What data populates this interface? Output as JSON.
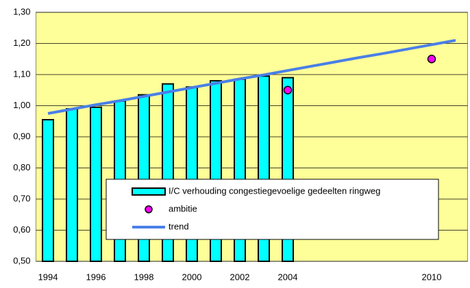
{
  "chart_data": {
    "type": "bar",
    "categories": [
      "1994",
      null,
      "1996",
      null,
      "1998",
      null,
      "2000",
      null,
      "2002",
      null,
      "2004",
      null,
      null,
      null,
      null,
      null,
      "2010",
      null
    ],
    "series": [
      {
        "name": "I/C verhouding congestiegevoelige gedeelten ringweg",
        "type": "bar",
        "color": "#00ffff",
        "values": [
          0.955,
          0.99,
          0.995,
          1.015,
          1.035,
          1.07,
          1.06,
          1.08,
          1.085,
          1.095,
          1.09,
          null,
          null,
          null,
          null,
          null,
          null,
          null
        ]
      },
      {
        "name": "ambitie",
        "type": "scatter",
        "color": "#ff00ff",
        "values": [
          null,
          null,
          null,
          null,
          null,
          null,
          null,
          null,
          null,
          null,
          1.05,
          null,
          null,
          null,
          null,
          null,
          1.15,
          null
        ]
      },
      {
        "name": "trend",
        "type": "line",
        "color": "#4a7fe8",
        "values": [
          0.975,
          0.989,
          1.003,
          1.016,
          1.03,
          1.044,
          1.058,
          1.072,
          1.086,
          1.099,
          1.113,
          1.127,
          1.141,
          1.155,
          1.168,
          1.182,
          1.196,
          1.21
        ]
      }
    ],
    "ylim": [
      0.5,
      1.3
    ],
    "yticks": [
      {
        "value": 0.5,
        "label": "0,50"
      },
      {
        "value": 0.6,
        "label": "0,60"
      },
      {
        "value": 0.7,
        "label": "0,70"
      },
      {
        "value": 0.8,
        "label": "0,80"
      },
      {
        "value": 0.9,
        "label": "0,90"
      },
      {
        "value": 1.0,
        "label": "1,00"
      },
      {
        "value": 1.1,
        "label": "1,10"
      },
      {
        "value": 1.2,
        "label": "1,20"
      },
      {
        "value": 1.3,
        "label": "1,30"
      }
    ],
    "grid": true,
    "background": "#ffff99"
  }
}
